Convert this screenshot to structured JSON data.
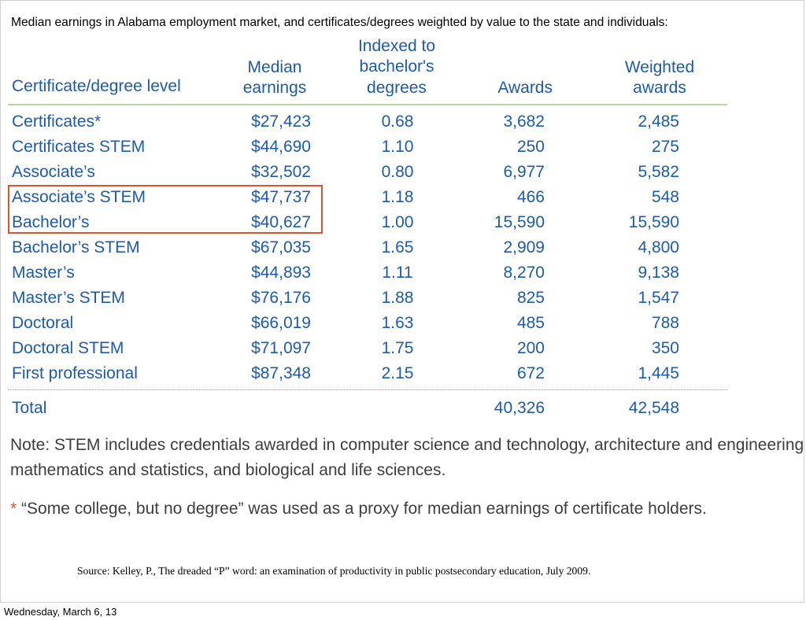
{
  "caption": "Median earnings in Alabama employment market, and certificates/degrees weighted by value to the state and individuals:",
  "table": {
    "headers": {
      "level": "Certificate/degree level",
      "earnings_line1": "Median",
      "earnings_line2": "earnings",
      "indexed_line1": "Indexed to",
      "indexed_line2": "bachelor's",
      "indexed_line3": "degrees",
      "awards": "Awards",
      "weighted_line1": "Weighted",
      "weighted_line2": "awards"
    },
    "rows": [
      {
        "level": "Certificates*",
        "earnings": "$27,423",
        "index": "0.68",
        "awards": "3,682",
        "weighted": "2,485"
      },
      {
        "level": "Certificates STEM",
        "earnings": "$44,690",
        "index": "1.10",
        "awards": "250",
        "weighted": "275"
      },
      {
        "level": "Associate’s",
        "earnings": "$32,502",
        "index": "0.80",
        "awards": "6,977",
        "weighted": "5,582"
      },
      {
        "level": "Associate’s STEM",
        "earnings": "$47,737",
        "index": "1.18",
        "awards": "466",
        "weighted": "548"
      },
      {
        "level": "Bachelor’s",
        "earnings": "$40,627",
        "index": "1.00",
        "awards": "15,590",
        "weighted": "15,590"
      },
      {
        "level": "Bachelor’s STEM",
        "earnings": "$67,035",
        "index": "1.65",
        "awards": "2,909",
        "weighted": "4,800"
      },
      {
        "level": "Master’s",
        "earnings": "$44,893",
        "index": "1.11",
        "awards": "8,270",
        "weighted": "9,138"
      },
      {
        "level": "Master’s STEM",
        "earnings": "$76,176",
        "index": "1.88",
        "awards": "825",
        "weighted": "1,547"
      },
      {
        "level": "Doctoral",
        "earnings": "$66,019",
        "index": "1.63",
        "awards": "485",
        "weighted": "788"
      },
      {
        "level": "Doctoral STEM",
        "earnings": "$71,097",
        "index": "1.75",
        "awards": "200",
        "weighted": "350"
      },
      {
        "level": "First professional",
        "earnings": "$87,348",
        "index": "2.15",
        "awards": "672",
        "weighted": "1,445"
      }
    ],
    "total": {
      "label": "Total",
      "awards": "40,326",
      "weighted": "42,548"
    }
  },
  "notes": {
    "stem_line1": "Note: STEM includes credentials awarded in computer science and technology, architecture and engineering",
    "stem_line2": "mathematics and statistics, and biological and life sciences.",
    "asterisk": "*",
    "proxy": "“Some college, but no degree” was used as a proxy for median earnings of certificate holders."
  },
  "source": "Source:  Kelley, P., The dreaded “P” word:  an examination of productivity in public postsecondary education, July 2009.",
  "footer_date": "Wednesday, March 6, 13",
  "colors": {
    "table_text": "#1f5aa6",
    "highlight": "#d9552f",
    "rule": "#b5d99a",
    "note_text": "#3d3d3d"
  }
}
